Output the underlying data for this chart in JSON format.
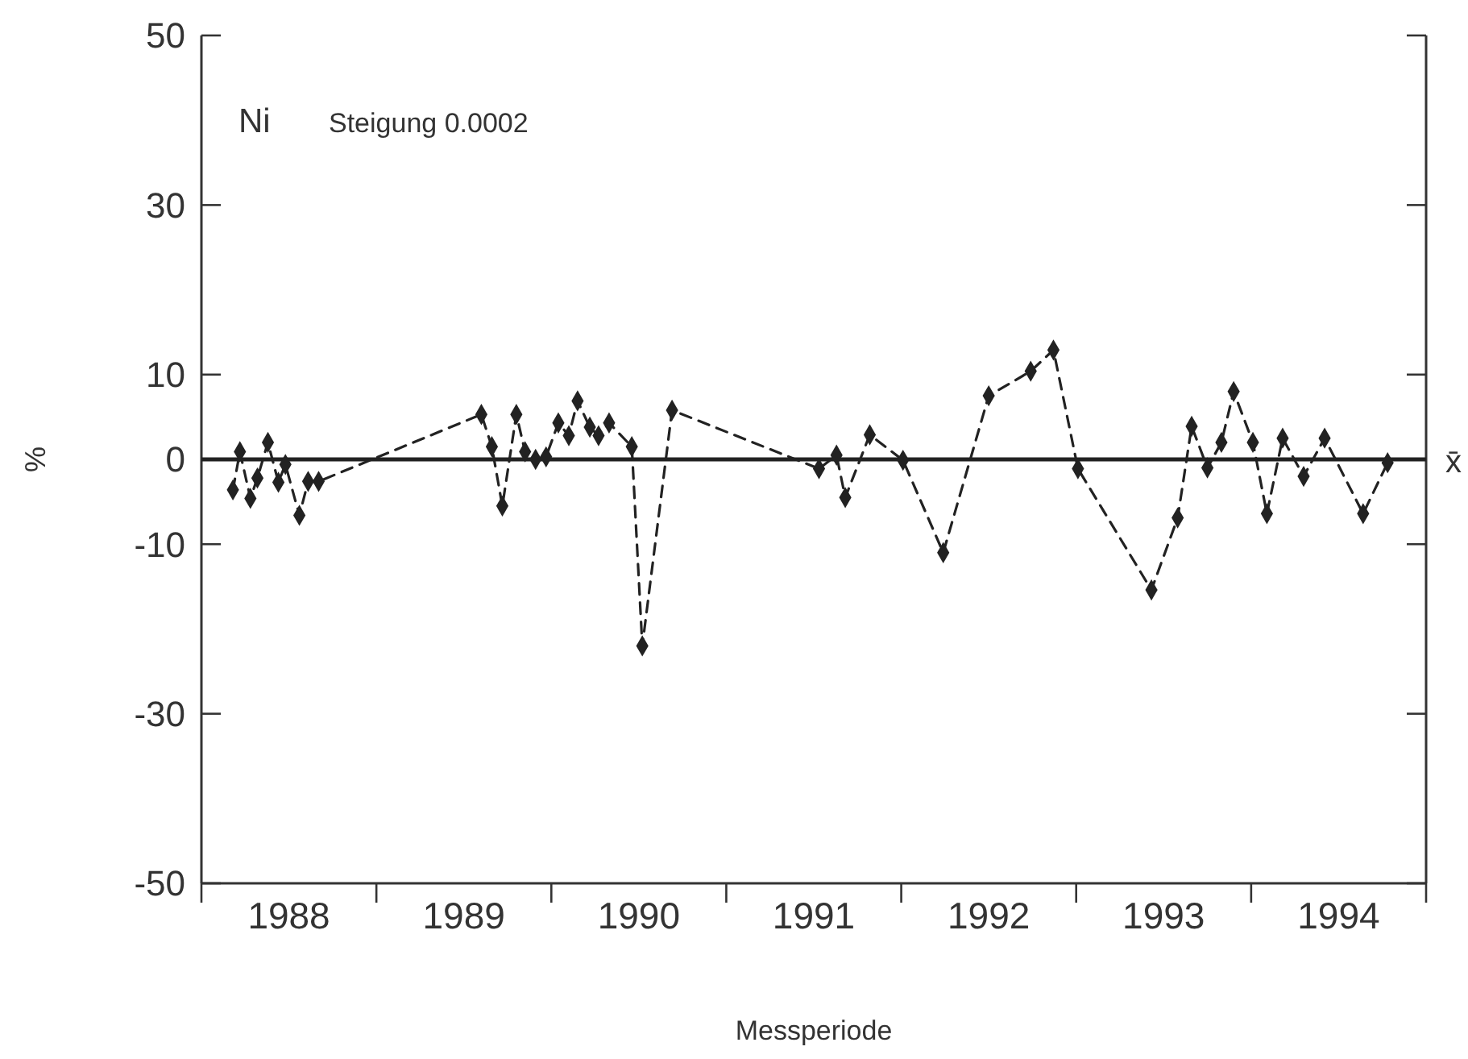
{
  "chart_data": {
    "type": "line",
    "xlabel": "Messperiode",
    "ylabel": "%",
    "annotations": [
      "Ni",
      "Steigung 0.0002"
    ],
    "xlim": [
      1988,
      1995
    ],
    "xticks": [
      {
        "value": 1988,
        "label": null
      },
      {
        "value": 1988.5,
        "label": "1988"
      },
      {
        "value": 1989,
        "label": null
      },
      {
        "value": 1989.5,
        "label": "1989"
      },
      {
        "value": 1990,
        "label": null
      },
      {
        "value": 1990.5,
        "label": "1990"
      },
      {
        "value": 1991,
        "label": null
      },
      {
        "value": 1991.5,
        "label": "1991"
      },
      {
        "value": 1992,
        "label": null
      },
      {
        "value": 1992.5,
        "label": "1992"
      },
      {
        "value": 1993,
        "label": null
      },
      {
        "value": 1993.5,
        "label": "1993"
      },
      {
        "value": 1994,
        "label": null
      },
      {
        "value": 1994.5,
        "label": "1994"
      },
      {
        "value": 1995,
        "label": null
      }
    ],
    "ylim": [
      -50,
      50
    ],
    "yticks": [
      -50,
      -30,
      -10,
      0,
      10,
      30,
      50
    ],
    "x": [
      1988.18,
      1988.22,
      1988.28,
      1988.32,
      1988.38,
      1988.44,
      1988.48,
      1988.56,
      1988.61,
      1988.67,
      1989.6,
      1989.66,
      1989.72,
      1989.8,
      1989.85,
      1989.91,
      1989.97,
      1990.04,
      1990.1,
      1990.15,
      1990.22,
      1990.27,
      1990.33,
      1990.46,
      1990.52,
      1990.69,
      1991.53,
      1991.63,
      1991.68,
      1991.82,
      1992.01,
      1992.24,
      1992.5,
      1992.74,
      1992.87,
      1993.01,
      1993.43,
      1993.58,
      1993.66,
      1993.75,
      1993.83,
      1993.9,
      1994.01,
      1994.09,
      1994.18,
      1994.3,
      1994.42,
      1994.64,
      1994.78
    ],
    "series": [
      {
        "color": "#222222",
        "values": [
          -3.6,
          0.9,
          -4.6,
          -2.2,
          2.0,
          -2.7,
          -0.6,
          -6.6,
          -2.6,
          -2.6,
          5.3,
          1.5,
          -5.5,
          5.3,
          0.9,
          0.0,
          0.3,
          4.3,
          2.8,
          6.9,
          3.8,
          2.8,
          4.3,
          1.5,
          -22.0,
          5.8,
          -1.1,
          0.5,
          -4.5,
          2.9,
          -0.1,
          -11.0,
          7.5,
          10.4,
          12.9,
          -1.1,
          -15.4,
          -6.9,
          3.9,
          -1.0,
          2.0,
          8.0,
          2.0,
          -6.4,
          2.5,
          -2.0,
          2.5,
          -6.4,
          -0.4
        ]
      }
    ],
    "ref_lines": [
      {
        "axis": "y",
        "value": 0,
        "label": "x̄",
        "color": "#222222"
      }
    ],
    "marker": "diamond",
    "line_style": "dashed"
  }
}
